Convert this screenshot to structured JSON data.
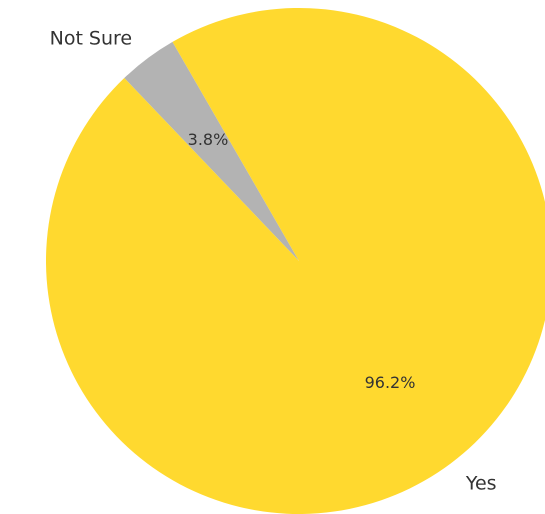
{
  "chart_data": {
    "type": "pie",
    "title": "",
    "start_angle_deg": 120,
    "direction": "counterclockwise",
    "slices": [
      {
        "label": "Not Sure",
        "value": 3.8,
        "pct_label": "3.8%",
        "color": "#b3b3b3"
      },
      {
        "label": "Yes",
        "value": 96.2,
        "pct_label": "96.2%",
        "color": "#ffd92f"
      }
    ]
  }
}
